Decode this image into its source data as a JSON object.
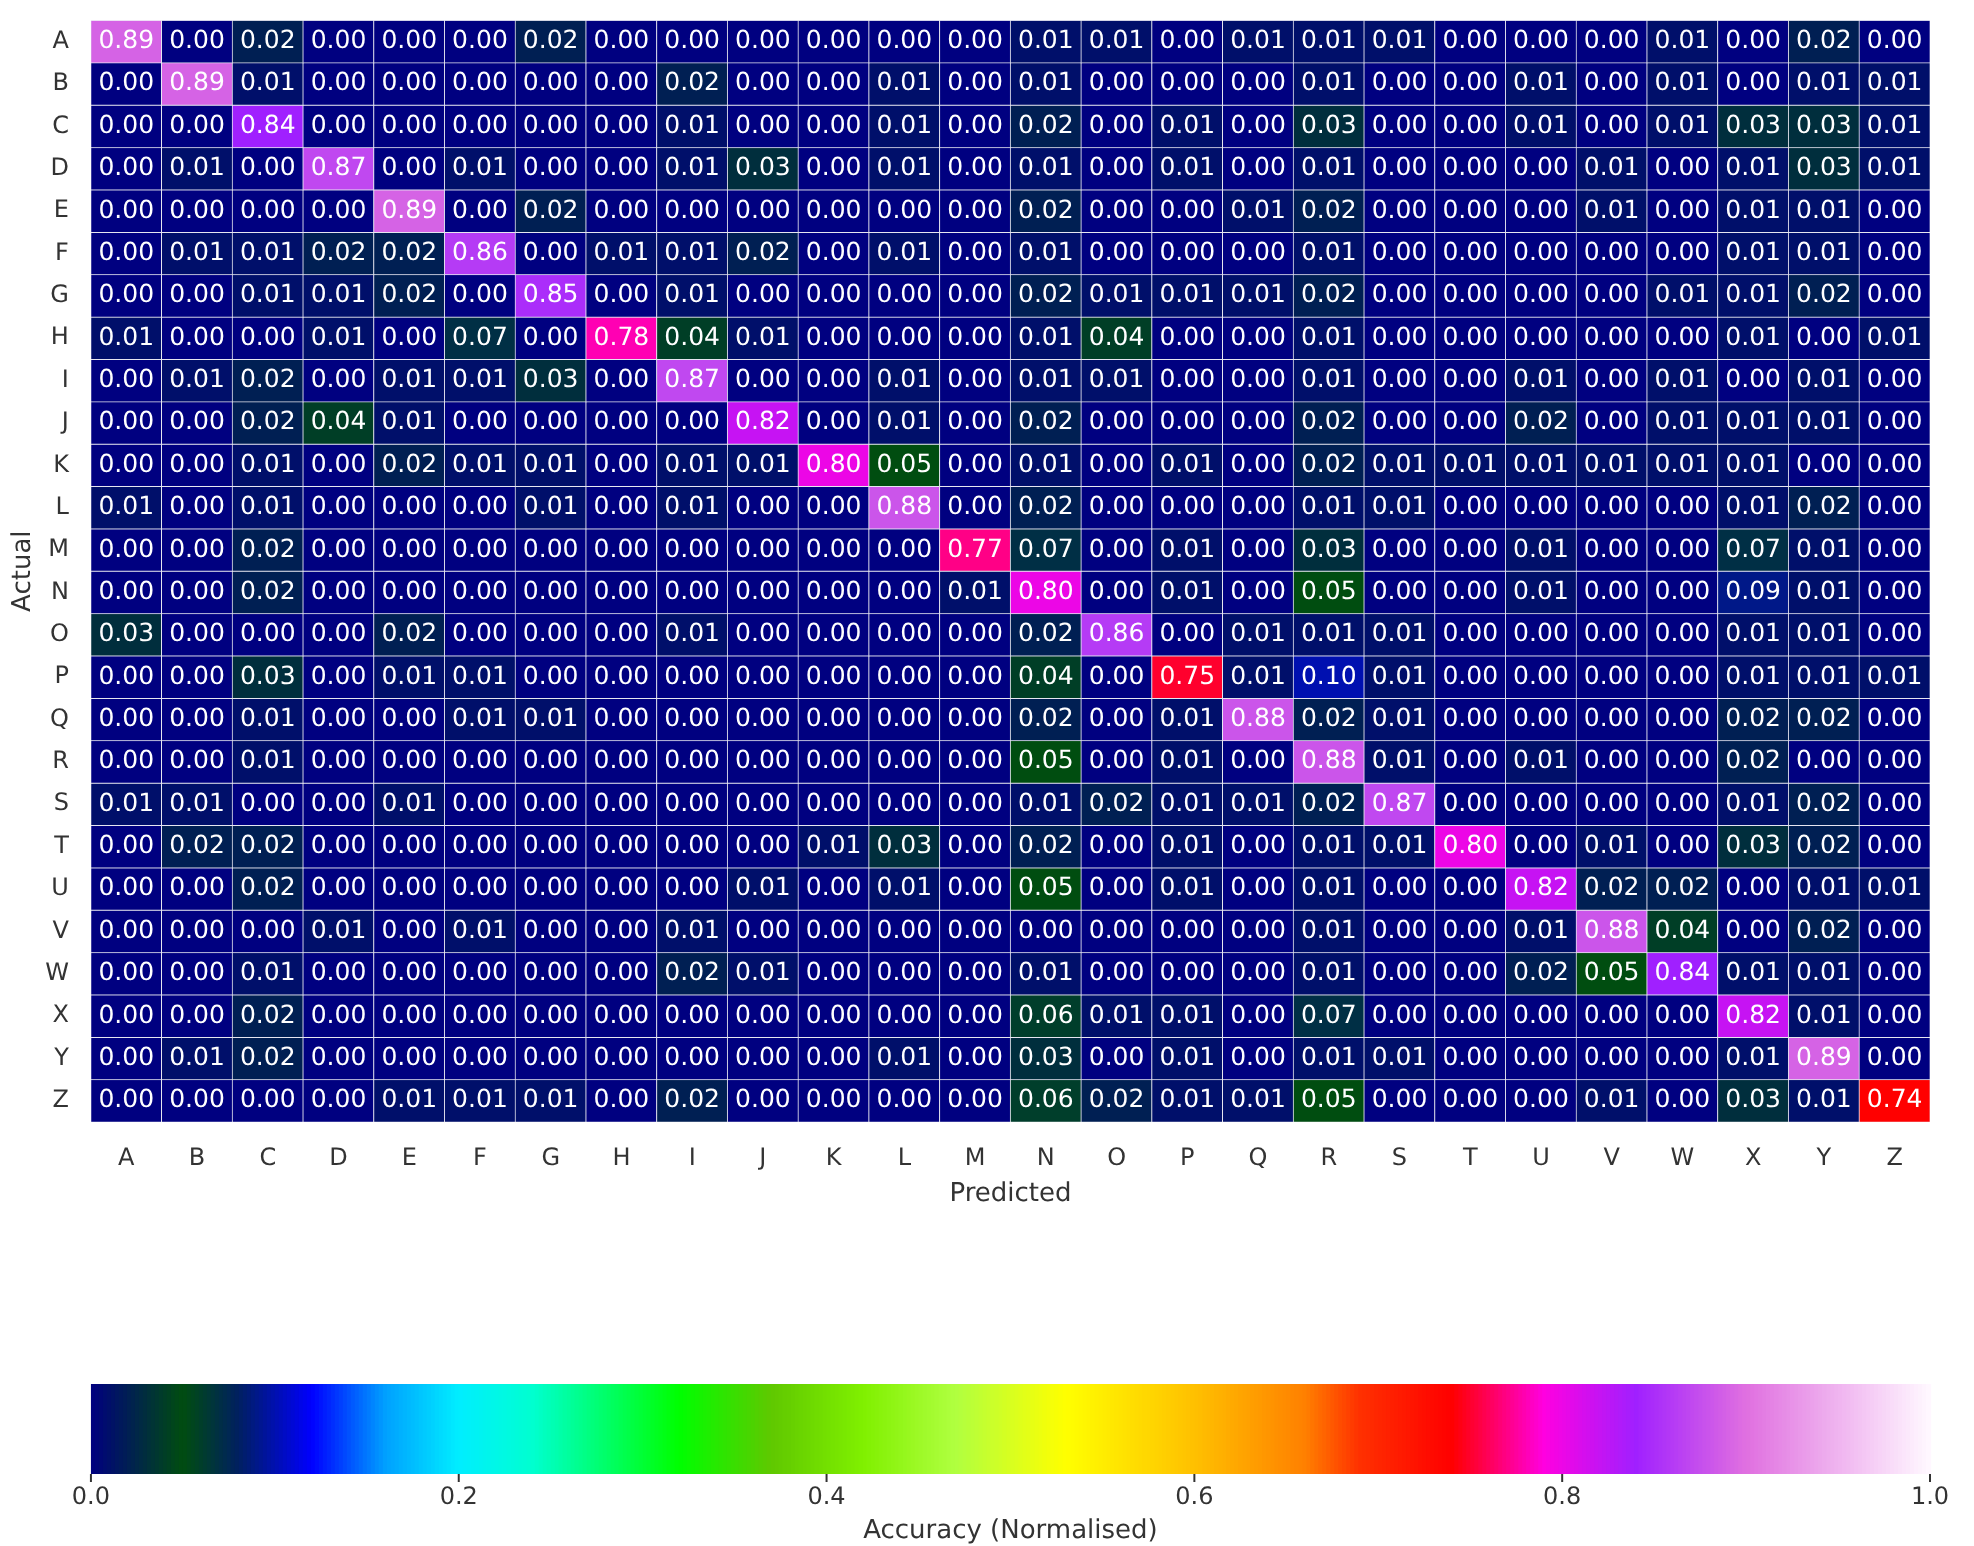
{
  "chart_data": {
    "type": "heatmap",
    "xlabel": "Predicted",
    "ylabel": "Actual",
    "clabel": "Accuracy (Normalised)",
    "categories": [
      "A",
      "B",
      "C",
      "D",
      "E",
      "F",
      "G",
      "H",
      "I",
      "J",
      "K",
      "L",
      "M",
      "N",
      "O",
      "P",
      "Q",
      "R",
      "S",
      "T",
      "U",
      "V",
      "W",
      "X",
      "Y",
      "Z"
    ],
    "y_categories": [
      "A",
      "B",
      "C",
      "D",
      "E",
      "F",
      "G",
      "H",
      "I",
      "J",
      "K",
      "L",
      "M",
      "N",
      "O",
      "P",
      "Q",
      "R",
      "S",
      "T",
      "U",
      "V",
      "W",
      "X",
      "Y",
      "Z"
    ],
    "cells": [
      [
        0.89,
        0,
        0.02,
        0,
        0,
        0,
        0.02,
        0,
        0,
        0,
        0,
        0,
        0,
        0.01,
        0.01,
        0,
        0.01,
        0.01,
        0.01,
        0,
        0,
        0,
        0.01,
        0,
        0.02,
        0
      ],
      [
        0,
        0.89,
        0.01,
        0,
        0,
        0,
        0,
        0,
        0.02,
        0,
        0,
        0.01,
        0,
        0.01,
        0,
        0,
        0,
        0.01,
        0,
        0,
        0.01,
        0,
        0.01,
        0,
        0.01,
        0.01
      ],
      [
        0,
        0,
        0.84,
        0,
        0,
        0,
        0,
        0,
        0.01,
        0,
        0,
        0.01,
        0,
        0.02,
        0,
        0.01,
        0,
        0.03,
        0,
        0,
        0.01,
        0,
        0.01,
        0.03,
        0.03,
        0.01
      ],
      [
        0,
        0.01,
        0,
        0.87,
        0,
        0.01,
        0,
        0,
        0.01,
        0.03,
        0,
        0.01,
        0,
        0.01,
        0,
        0.01,
        0,
        0.01,
        0,
        0,
        0,
        0.01,
        0,
        0.01,
        0.03,
        0.01
      ],
      [
        0,
        0,
        0,
        0,
        0.89,
        0,
        0.02,
        0,
        0,
        0,
        0,
        0,
        0,
        0.02,
        0,
        0,
        0.01,
        0.02,
        0,
        0,
        0,
        0.01,
        0,
        0.01,
        0.01,
        0
      ],
      [
        0,
        0.01,
        0.01,
        0.02,
        0.02,
        0.86,
        0,
        0.01,
        0.01,
        0.02,
        0,
        0.01,
        0,
        0.01,
        0,
        0,
        0,
        0.01,
        0,
        0,
        0,
        0,
        0,
        0.01,
        0.01,
        0
      ],
      [
        0,
        0,
        0.01,
        0.01,
        0.02,
        0,
        0.85,
        0,
        0.01,
        0,
        0,
        0,
        0,
        0.02,
        0.01,
        0.01,
        0.01,
        0.02,
        0,
        0,
        0,
        0,
        0.01,
        0.01,
        0.02,
        0
      ],
      [
        0.01,
        0,
        0,
        0.01,
        0,
        0.07,
        0,
        0.78,
        0.04,
        0.01,
        0,
        0,
        0,
        0.01,
        0.04,
        0,
        0,
        0.01,
        0,
        0,
        0,
        0,
        0,
        0.01,
        0,
        0.01
      ],
      [
        0,
        0.01,
        0.02,
        0,
        0.01,
        0.01,
        0.03,
        0,
        0.87,
        0,
        0,
        0.01,
        0,
        0.01,
        0.01,
        0,
        0,
        0.01,
        0,
        0,
        0.01,
        0,
        0.01,
        0,
        0.01,
        0
      ],
      [
        0,
        0,
        0.02,
        0.04,
        0.01,
        0,
        0,
        0,
        0,
        0.82,
        0,
        0.01,
        0,
        0.02,
        0,
        0,
        0,
        0.02,
        0,
        0,
        0.02,
        0,
        0.01,
        0.01,
        0.01,
        0
      ],
      [
        0,
        0,
        0.01,
        0,
        0.02,
        0.01,
        0.01,
        0,
        0.01,
        0.01,
        0.8,
        0.05,
        0,
        0.01,
        0,
        0.01,
        0,
        0.02,
        0.01,
        0.01,
        0.01,
        0.01,
        0.01,
        0.01,
        0,
        0
      ],
      [
        0.01,
        0,
        0.01,
        0,
        0,
        0,
        0.01,
        0,
        0.01,
        0,
        0,
        0.88,
        0,
        0.02,
        0,
        0,
        0,
        0.01,
        0.01,
        0,
        0,
        0,
        0,
        0.01,
        0.02,
        0
      ],
      [
        0,
        0,
        0.02,
        0,
        0,
        0,
        0,
        0,
        0,
        0,
        0,
        0,
        0.77,
        0.07,
        0,
        0.01,
        0,
        0.03,
        0,
        0,
        0.01,
        0,
        0,
        0.07,
        0.01,
        0
      ],
      [
        0,
        0,
        0.02,
        0,
        0,
        0,
        0,
        0,
        0,
        0,
        0,
        0,
        0.01,
        0.8,
        0,
        0.01,
        0,
        0.05,
        0,
        0,
        0.01,
        0,
        0,
        0.09,
        0.01,
        0
      ],
      [
        0.03,
        0,
        0,
        0,
        0.02,
        0,
        0,
        0,
        0.01,
        0,
        0,
        0,
        0,
        0.02,
        0.86,
        0,
        0.01,
        0.01,
        0.01,
        0,
        0,
        0,
        0,
        0.01,
        0.01,
        0
      ],
      [
        0,
        0,
        0.03,
        0,
        0.01,
        0.01,
        0,
        0,
        0,
        0,
        0,
        0,
        0,
        0.04,
        0,
        0.75,
        0.01,
        0.1,
        0.01,
        0,
        0,
        0,
        0,
        0.01,
        0.01,
        0.01
      ],
      [
        0,
        0,
        0.01,
        0,
        0,
        0.01,
        0.01,
        0,
        0,
        0,
        0,
        0,
        0,
        0.02,
        0,
        0.01,
        0.88,
        0.02,
        0.01,
        0,
        0,
        0,
        0,
        0.02,
        0.02,
        0
      ],
      [
        0,
        0,
        0.01,
        0,
        0,
        0,
        0,
        0,
        0,
        0,
        0,
        0,
        0,
        0.05,
        0,
        0.01,
        0,
        0.88,
        0.01,
        0,
        0.01,
        0,
        0,
        0.02,
        0,
        0
      ],
      [
        0.01,
        0.01,
        0,
        0,
        0.01,
        0,
        0,
        0,
        0,
        0,
        0,
        0,
        0,
        0.01,
        0.02,
        0.01,
        0.01,
        0.02,
        0.87,
        0,
        0,
        0,
        0,
        0.01,
        0.02,
        0
      ],
      [
        0,
        0.02,
        0.02,
        0,
        0,
        0,
        0,
        0,
        0,
        0,
        0.01,
        0.03,
        0,
        0.02,
        0,
        0.01,
        0,
        0.01,
        0.01,
        0.8,
        0,
        0.01,
        0,
        0.03,
        0.02,
        0
      ],
      [
        0,
        0,
        0.02,
        0,
        0,
        0,
        0,
        0,
        0,
        0.01,
        0,
        0.01,
        0,
        0.05,
        0,
        0.01,
        0,
        0.01,
        0,
        0,
        0.82,
        0.02,
        0.02,
        0,
        0.01,
        0.01
      ],
      [
        0,
        0,
        0,
        0.01,
        0,
        0.01,
        0,
        0,
        0.01,
        0,
        0,
        0,
        0,
        0,
        0,
        0,
        0,
        0.01,
        0,
        0,
        0.01,
        0.88,
        0.04,
        0,
        0.02,
        0
      ],
      [
        0,
        0,
        0.01,
        0,
        0,
        0,
        0,
        0,
        0.02,
        0.01,
        0,
        0,
        0,
        0.01,
        0,
        0,
        0,
        0.01,
        0,
        0,
        0.02,
        0.05,
        0.84,
        0.01,
        0.01,
        0
      ],
      [
        0,
        0,
        0.02,
        0,
        0,
        0,
        0,
        0,
        0,
        0,
        0,
        0,
        0,
        0.06,
        0.01,
        0.01,
        0,
        0.07,
        0,
        0,
        0,
        0,
        0,
        0.82,
        0.01,
        0
      ],
      [
        0,
        0.01,
        0.02,
        0,
        0,
        0,
        0,
        0,
        0,
        0,
        0,
        0.01,
        0,
        0.03,
        0,
        0.01,
        0,
        0.01,
        0.01,
        0,
        0,
        0,
        0,
        0.01,
        0.89,
        0
      ],
      [
        0,
        0,
        0,
        0,
        0.01,
        0.01,
        0.01,
        0,
        0.02,
        0,
        0,
        0,
        0,
        0.06,
        0.02,
        0.01,
        0.01,
        0.05,
        0,
        0,
        0,
        0.01,
        0,
        0.03,
        0.01,
        0.74
      ]
    ],
    "clim": [
      0,
      1
    ],
    "cticks": [
      {
        "value": 0,
        "label": "0.0"
      },
      {
        "value": 0.2,
        "label": "0.2"
      },
      {
        "value": 0.4,
        "label": "0.4"
      },
      {
        "value": 0.6,
        "label": "0.6"
      },
      {
        "value": 0.8,
        "label": "0.8"
      },
      {
        "value": 1,
        "label": "1.0"
      }
    ],
    "cell_labels": [
      [
        "0.89",
        "0.00",
        "0.02",
        "0.00",
        "0.00",
        "0.00",
        "0.02",
        "0.00",
        "0.00",
        "0.00",
        "0.00",
        "0.00",
        "0.00",
        "0.01",
        "0.01",
        "0.00",
        "0.01",
        "0.01",
        "0.01",
        "0.00",
        "0.00",
        "0.00",
        "0.01",
        "0.00",
        "0.02",
        "0.00"
      ],
      [
        "0.00",
        "0.89",
        "0.01",
        "0.00",
        "0.00",
        "0.00",
        "0.00",
        "0.00",
        "0.02",
        "0.00",
        "0.00",
        "0.01",
        "0.00",
        "0.01",
        "0.00",
        "0.00",
        "0.00",
        "0.01",
        "0.00",
        "0.00",
        "0.01",
        "0.00",
        "0.01",
        "0.00",
        "0.01",
        "0.01"
      ],
      [
        "0.00",
        "0.00",
        "0.84",
        "0.00",
        "0.00",
        "0.00",
        "0.00",
        "0.00",
        "0.01",
        "0.00",
        "0.00",
        "0.01",
        "0.00",
        "0.02",
        "0.00",
        "0.01",
        "0.00",
        "0.03",
        "0.00",
        "0.00",
        "0.01",
        "0.00",
        "0.01",
        "0.03",
        "0.03",
        "0.01"
      ],
      [
        "0.00",
        "0.01",
        "0.00",
        "0.87",
        "0.00",
        "0.01",
        "0.00",
        "0.00",
        "0.01",
        "0.03",
        "0.00",
        "0.01",
        "0.00",
        "0.01",
        "0.00",
        "0.01",
        "0.00",
        "0.01",
        "0.00",
        "0.00",
        "0.00",
        "0.01",
        "0.00",
        "0.01",
        "0.03",
        "0.01"
      ],
      [
        "0.00",
        "0.00",
        "0.00",
        "0.00",
        "0.89",
        "0.00",
        "0.02",
        "0.00",
        "0.00",
        "0.00",
        "0.00",
        "0.00",
        "0.00",
        "0.02",
        "0.00",
        "0.00",
        "0.01",
        "0.02",
        "0.00",
        "0.00",
        "0.00",
        "0.01",
        "0.00",
        "0.01",
        "0.01",
        "0.00"
      ],
      [
        "0.00",
        "0.01",
        "0.01",
        "0.02",
        "0.02",
        "0.86",
        "0.00",
        "0.01",
        "0.01",
        "0.02",
        "0.00",
        "0.01",
        "0.00",
        "0.01",
        "0.00",
        "0.00",
        "0.00",
        "0.01",
        "0.00",
        "0.00",
        "0.00",
        "0.00",
        "0.00",
        "0.01",
        "0.01",
        "0.00"
      ],
      [
        "0.00",
        "0.00",
        "0.01",
        "0.01",
        "0.02",
        "0.00",
        "0.85",
        "0.00",
        "0.01",
        "0.00",
        "0.00",
        "0.00",
        "0.00",
        "0.02",
        "0.01",
        "0.01",
        "0.01",
        "0.02",
        "0.00",
        "0.00",
        "0.00",
        "0.00",
        "0.01",
        "0.01",
        "0.02",
        "0.00"
      ],
      [
        "0.01",
        "0.00",
        "0.00",
        "0.01",
        "0.00",
        "0.07",
        "0.00",
        "0.78",
        "0.04",
        "0.01",
        "0.00",
        "0.00",
        "0.00",
        "0.01",
        "0.04",
        "0.00",
        "0.00",
        "0.01",
        "0.00",
        "0.00",
        "0.00",
        "0.00",
        "0.00",
        "0.01",
        "0.00",
        "0.01"
      ],
      [
        "0.00",
        "0.01",
        "0.02",
        "0.00",
        "0.01",
        "0.01",
        "0.03",
        "0.00",
        "0.87",
        "0.00",
        "0.00",
        "0.01",
        "0.00",
        "0.01",
        "0.01",
        "0.00",
        "0.00",
        "0.01",
        "0.00",
        "0.00",
        "0.01",
        "0.00",
        "0.01",
        "0.00",
        "0.01",
        "0.00"
      ],
      [
        "0.00",
        "0.00",
        "0.02",
        "0.04",
        "0.01",
        "0.00",
        "0.00",
        "0.00",
        "0.00",
        "0.82",
        "0.00",
        "0.01",
        "0.00",
        "0.02",
        "0.00",
        "0.00",
        "0.00",
        "0.02",
        "0.00",
        "0.00",
        "0.02",
        "0.00",
        "0.01",
        "0.01",
        "0.01",
        "0.00"
      ],
      [
        "0.00",
        "0.00",
        "0.01",
        "0.00",
        "0.02",
        "0.01",
        "0.01",
        "0.00",
        "0.01",
        "0.01",
        "0.80",
        "0.05",
        "0.00",
        "0.01",
        "0.00",
        "0.01",
        "0.00",
        "0.02",
        "0.01",
        "0.01",
        "0.01",
        "0.01",
        "0.01",
        "0.01",
        "0.00",
        "0.00"
      ],
      [
        "0.01",
        "0.00",
        "0.01",
        "0.00",
        "0.00",
        "0.00",
        "0.01",
        "0.00",
        "0.01",
        "0.00",
        "0.00",
        "0.88",
        "0.00",
        "0.02",
        "0.00",
        "0.00",
        "0.00",
        "0.01",
        "0.01",
        "0.00",
        "0.00",
        "0.00",
        "0.00",
        "0.01",
        "0.02",
        "0.00"
      ],
      [
        "0.00",
        "0.00",
        "0.02",
        "0.00",
        "0.00",
        "0.00",
        "0.00",
        "0.00",
        "0.00",
        "0.00",
        "0.00",
        "0.00",
        "0.77",
        "0.07",
        "0.00",
        "0.01",
        "0.00",
        "0.03",
        "0.00",
        "0.00",
        "0.01",
        "0.00",
        "0.00",
        "0.07",
        "0.01",
        "0.00"
      ],
      [
        "0.00",
        "0.00",
        "0.02",
        "0.00",
        "0.00",
        "0.00",
        "0.00",
        "0.00",
        "0.00",
        "0.00",
        "0.00",
        "0.00",
        "0.01",
        "0.80",
        "0.00",
        "0.01",
        "0.00",
        "0.05",
        "0.00",
        "0.00",
        "0.01",
        "0.00",
        "0.00",
        "0.09",
        "0.01",
        "0.00"
      ],
      [
        "0.03",
        "0.00",
        "0.00",
        "0.00",
        "0.02",
        "0.00",
        "0.00",
        "0.00",
        "0.01",
        "0.00",
        "0.00",
        "0.00",
        "0.00",
        "0.02",
        "0.86",
        "0.00",
        "0.01",
        "0.01",
        "0.01",
        "0.00",
        "0.00",
        "0.00",
        "0.00",
        "0.01",
        "0.01",
        "0.00"
      ],
      [
        "0.00",
        "0.00",
        "0.03",
        "0.00",
        "0.01",
        "0.01",
        "0.00",
        "0.00",
        "0.00",
        "0.00",
        "0.00",
        "0.00",
        "0.00",
        "0.04",
        "0.00",
        "0.75",
        "0.01",
        "0.10",
        "0.01",
        "0.00",
        "0.00",
        "0.00",
        "0.00",
        "0.01",
        "0.01",
        "0.01"
      ],
      [
        "0.00",
        "0.00",
        "0.01",
        "0.00",
        "0.00",
        "0.01",
        "0.01",
        "0.00",
        "0.00",
        "0.00",
        "0.00",
        "0.00",
        "0.00",
        "0.02",
        "0.00",
        "0.01",
        "0.88",
        "0.02",
        "0.01",
        "0.00",
        "0.00",
        "0.00",
        "0.00",
        "0.02",
        "0.02",
        "0.00"
      ],
      [
        "0.00",
        "0.00",
        "0.01",
        "0.00",
        "0.00",
        "0.00",
        "0.00",
        "0.00",
        "0.00",
        "0.00",
        "0.00",
        "0.00",
        "0.00",
        "0.05",
        "0.00",
        "0.01",
        "0.00",
        "0.88",
        "0.01",
        "0.00",
        "0.01",
        "0.00",
        "0.00",
        "0.02",
        "0.00",
        "0.00"
      ],
      [
        "0.01",
        "0.01",
        "0.00",
        "0.00",
        "0.01",
        "0.00",
        "0.00",
        "0.00",
        "0.00",
        "0.00",
        "0.00",
        "0.00",
        "0.00",
        "0.01",
        "0.02",
        "0.01",
        "0.01",
        "0.02",
        "0.87",
        "0.00",
        "0.00",
        "0.00",
        "0.00",
        "0.01",
        "0.02",
        "0.00"
      ],
      [
        "0.00",
        "0.02",
        "0.02",
        "0.00",
        "0.00",
        "0.00",
        "0.00",
        "0.00",
        "0.00",
        "0.00",
        "0.01",
        "0.03",
        "0.00",
        "0.02",
        "0.00",
        "0.01",
        "0.00",
        "0.01",
        "0.01",
        "0.80",
        "0.00",
        "0.01",
        "0.00",
        "0.03",
        "0.02",
        "0.00"
      ],
      [
        "0.00",
        "0.00",
        "0.02",
        "0.00",
        "0.00",
        "0.00",
        "0.00",
        "0.00",
        "0.00",
        "0.01",
        "0.00",
        "0.01",
        "0.00",
        "0.05",
        "0.00",
        "0.01",
        "0.00",
        "0.01",
        "0.00",
        "0.00",
        "0.82",
        "0.02",
        "0.02",
        "0.00",
        "0.01",
        "0.01"
      ],
      [
        "0.00",
        "0.00",
        "0.00",
        "0.01",
        "0.00",
        "0.01",
        "0.00",
        "0.00",
        "0.01",
        "0.00",
        "0.00",
        "0.00",
        "0.00",
        "0.00",
        "0.00",
        "0.00",
        "0.00",
        "0.01",
        "0.00",
        "0.00",
        "0.01",
        "0.88",
        "0.04",
        "0.00",
        "0.02",
        "0.00"
      ],
      [
        "0.00",
        "0.00",
        "0.01",
        "0.00",
        "0.00",
        "0.00",
        "0.00",
        "0.00",
        "0.02",
        "0.01",
        "0.00",
        "0.00",
        "0.00",
        "0.01",
        "0.00",
        "0.00",
        "0.00",
        "0.01",
        "0.00",
        "0.00",
        "0.02",
        "0.05",
        "0.84",
        "0.01",
        "0.01",
        "0.00"
      ],
      [
        "0.00",
        "0.00",
        "0.02",
        "0.00",
        "0.00",
        "0.00",
        "0.00",
        "0.00",
        "0.00",
        "0.00",
        "0.00",
        "0.00",
        "0.00",
        "0.06",
        "0.01",
        "0.01",
        "0.00",
        "0.07",
        "0.00",
        "0.00",
        "0.00",
        "0.00",
        "0.00",
        "0.82",
        "0.01",
        "0.00"
      ],
      [
        "0.00",
        "0.01",
        "0.02",
        "0.00",
        "0.00",
        "0.00",
        "0.00",
        "0.00",
        "0.00",
        "0.00",
        "0.00",
        "0.01",
        "0.00",
        "0.03",
        "0.00",
        "0.01",
        "0.00",
        "0.01",
        "0.01",
        "0.00",
        "0.00",
        "0.00",
        "0.00",
        "0.01",
        "0.89",
        "0.00"
      ],
      [
        "0.00",
        "0.00",
        "0.00",
        "0.00",
        "0.01",
        "0.01",
        "0.01",
        "0.00",
        "0.02",
        "0.00",
        "0.00",
        "0.00",
        "0.00",
        "0.06",
        "0.02",
        "0.01",
        "0.01",
        "0.05",
        "0.00",
        "0.00",
        "0.00",
        "0.01",
        "0.00",
        "0.03",
        "0.01",
        "0.74"
      ]
    ]
  }
}
